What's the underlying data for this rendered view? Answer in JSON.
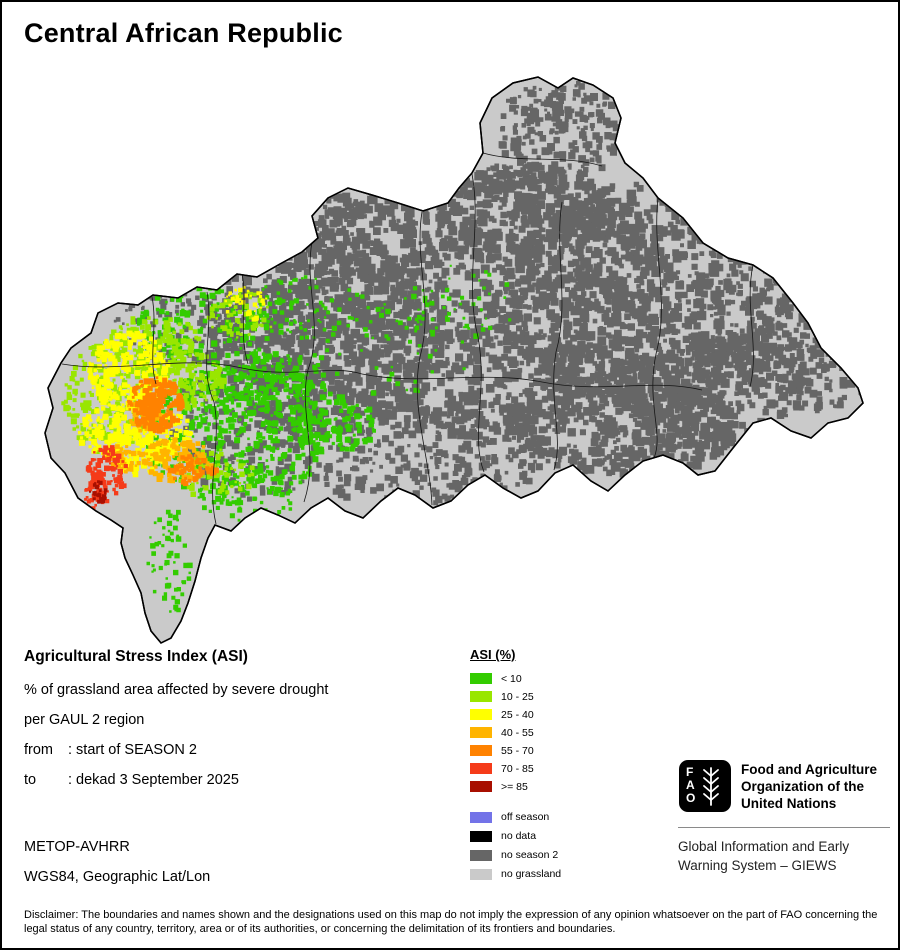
{
  "title": "Central African Republic",
  "info": {
    "heading": "Agricultural Stress Index (ASI)",
    "description_line1": "% of grassland area affected by severe drought",
    "description_line2": "per GAUL 2 region",
    "from_label": "from",
    "from_value": ": start of SEASON 2",
    "to_label": "to",
    "to_value": ": dekad 3 September 2025",
    "sensor": "METOP-AVHRR",
    "projection": "WGS84, Geographic Lat/Lon"
  },
  "legend": {
    "title": "ASI (%)",
    "classes": [
      {
        "label": "< 10",
        "color": "#33cc00"
      },
      {
        "label": "10 - 25",
        "color": "#99e600"
      },
      {
        "label": "25 - 40",
        "color": "#ffff00"
      },
      {
        "label": "40 - 55",
        "color": "#ffb400"
      },
      {
        "label": "55 - 70",
        "color": "#ff8200"
      },
      {
        "label": "70 - 85",
        "color": "#f53b19"
      },
      {
        "label": ">= 85",
        "color": "#a80f00"
      }
    ],
    "extra": [
      {
        "label": "off season",
        "color": "#7373e8"
      },
      {
        "label": "no data",
        "color": "#000000"
      },
      {
        "label": "no season 2",
        "color": "#666666"
      },
      {
        "label": "no grassland",
        "color": "#cacaca"
      }
    ]
  },
  "branding": {
    "logo_letters": [
      "F",
      "A",
      "O"
    ],
    "org_name": "Food and Agriculture Organization of the United Nations",
    "system_name": "Global Information and Early Warning System – GIEWS"
  },
  "disclaimer": "Disclaimer: The boundaries and names shown and the designations used on this map do not imply the expression of any opinion whatsoever on the part of FAO concerning the legal status of any country, territory, area or of its authorities, or concerning the delimitation of its frontiers and boundaries."
}
